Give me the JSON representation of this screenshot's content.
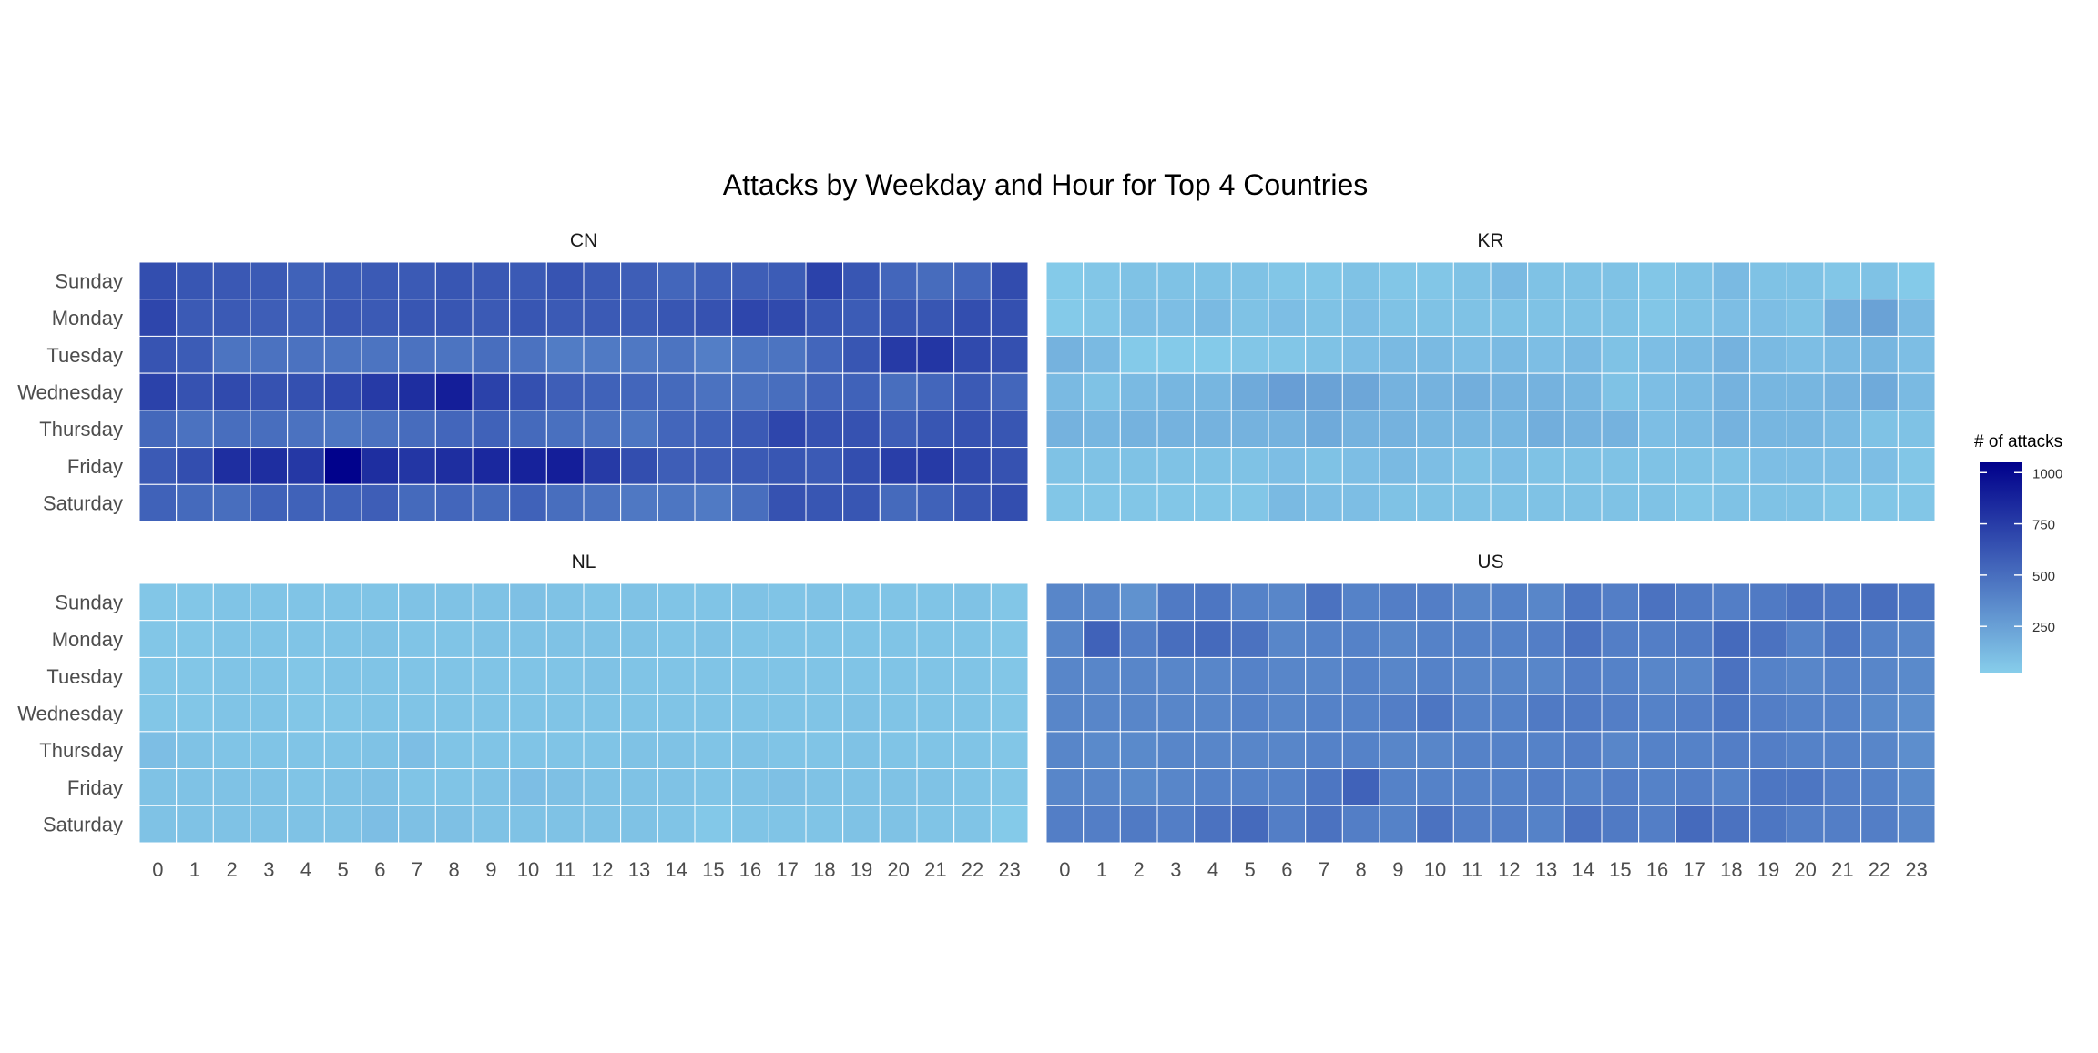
{
  "chart_data": {
    "type": "heatmap",
    "title": "Attacks by Weekday and Hour for Top 4 Countries",
    "xlabel": "",
    "ylabel": "",
    "hours": [
      "0",
      "1",
      "2",
      "3",
      "4",
      "5",
      "6",
      "7",
      "8",
      "9",
      "10",
      "11",
      "12",
      "13",
      "14",
      "15",
      "16",
      "17",
      "18",
      "19",
      "20",
      "21",
      "22",
      "23"
    ],
    "weekdays": [
      "Sunday",
      "Monday",
      "Tuesday",
      "Wednesday",
      "Thursday",
      "Friday",
      "Saturday"
    ],
    "legend": {
      "title": "# of attacks",
      "ticks": [
        250,
        500,
        750,
        1000
      ],
      "range": [
        20,
        1050
      ],
      "low_color": "#87CEEB",
      "high_color": "#00008B",
      "placement": "right"
    },
    "grid": false,
    "panels": [
      {
        "name": "CN",
        "values": [
          [
            660,
            620,
            610,
            600,
            560,
            590,
            600,
            600,
            620,
            610,
            600,
            630,
            600,
            580,
            540,
            570,
            580,
            590,
            720,
            620,
            540,
            510,
            540,
            670
          ],
          [
            700,
            600,
            600,
            580,
            560,
            610,
            600,
            620,
            620,
            600,
            620,
            600,
            600,
            590,
            620,
            640,
            700,
            680,
            620,
            590,
            620,
            620,
            660,
            650
          ],
          [
            630,
            590,
            470,
            480,
            480,
            470,
            470,
            480,
            470,
            500,
            480,
            430,
            440,
            450,
            470,
            420,
            460,
            470,
            540,
            620,
            760,
            780,
            680,
            650
          ],
          [
            720,
            640,
            680,
            640,
            650,
            690,
            760,
            820,
            900,
            720,
            650,
            580,
            560,
            540,
            520,
            480,
            480,
            500,
            550,
            560,
            500,
            540,
            600,
            540
          ],
          [
            530,
            480,
            500,
            500,
            480,
            460,
            480,
            510,
            540,
            560,
            520,
            490,
            480,
            460,
            540,
            560,
            600,
            700,
            640,
            640,
            580,
            620,
            640,
            620
          ],
          [
            600,
            660,
            820,
            820,
            770,
            1040,
            820,
            780,
            820,
            850,
            880,
            900,
            760,
            660,
            580,
            580,
            600,
            620,
            600,
            660,
            740,
            760,
            680,
            640
          ],
          [
            560,
            520,
            500,
            560,
            560,
            560,
            580,
            520,
            540,
            520,
            560,
            500,
            480,
            450,
            460,
            440,
            500,
            640,
            620,
            620,
            520,
            560,
            620,
            660
          ]
        ]
      },
      {
        "name": "KR",
        "values": [
          [
            40,
            60,
            80,
            80,
            80,
            80,
            60,
            60,
            80,
            60,
            60,
            80,
            120,
            80,
            80,
            80,
            60,
            80,
            120,
            80,
            80,
            60,
            80,
            40
          ],
          [
            40,
            60,
            100,
            100,
            120,
            80,
            100,
            80,
            100,
            80,
            80,
            80,
            80,
            80,
            80,
            80,
            60,
            80,
            100,
            100,
            80,
            180,
            240,
            120
          ],
          [
            160,
            120,
            40,
            40,
            40,
            60,
            60,
            80,
            100,
            120,
            120,
            100,
            120,
            100,
            120,
            80,
            100,
            120,
            160,
            120,
            100,
            120,
            140,
            100
          ],
          [
            120,
            80,
            120,
            140,
            140,
            200,
            260,
            240,
            220,
            160,
            160,
            180,
            160,
            160,
            140,
            80,
            100,
            120,
            160,
            140,
            140,
            160,
            200,
            120
          ],
          [
            160,
            140,
            160,
            160,
            160,
            160,
            160,
            200,
            160,
            160,
            140,
            140,
            140,
            180,
            160,
            160,
            100,
            120,
            160,
            140,
            140,
            120,
            80,
            80
          ],
          [
            80,
            80,
            80,
            80,
            80,
            80,
            100,
            80,
            100,
            120,
            100,
            80,
            100,
            80,
            80,
            80,
            80,
            80,
            80,
            100,
            100,
            100,
            100,
            60
          ],
          [
            60,
            60,
            60,
            60,
            60,
            60,
            120,
            100,
            100,
            80,
            80,
            80,
            80,
            80,
            80,
            80,
            80,
            60,
            80,
            80,
            80,
            60,
            60,
            60
          ]
        ]
      },
      {
        "name": "NL",
        "values": [
          [
            60,
            60,
            70,
            70,
            70,
            70,
            70,
            80,
            80,
            80,
            90,
            80,
            70,
            80,
            70,
            70,
            80,
            70,
            80,
            70,
            70,
            70,
            80,
            60
          ],
          [
            60,
            60,
            70,
            70,
            70,
            70,
            80,
            70,
            70,
            80,
            80,
            80,
            80,
            80,
            70,
            80,
            70,
            70,
            70,
            70,
            70,
            70,
            70,
            60
          ],
          [
            60,
            60,
            70,
            70,
            60,
            70,
            70,
            70,
            70,
            70,
            70,
            70,
            80,
            70,
            70,
            70,
            70,
            70,
            70,
            70,
            70,
            70,
            70,
            60
          ],
          [
            60,
            60,
            70,
            70,
            60,
            60,
            70,
            70,
            70,
            70,
            70,
            70,
            70,
            70,
            70,
            70,
            70,
            70,
            70,
            80,
            70,
            70,
            70,
            60
          ],
          [
            100,
            80,
            70,
            70,
            70,
            70,
            80,
            100,
            70,
            70,
            70,
            70,
            70,
            80,
            80,
            70,
            80,
            70,
            70,
            80,
            70,
            70,
            70,
            60
          ],
          [
            80,
            80,
            80,
            80,
            70,
            80,
            90,
            70,
            70,
            80,
            100,
            90,
            80,
            80,
            80,
            70,
            80,
            90,
            80,
            80,
            80,
            80,
            70,
            60
          ],
          [
            80,
            80,
            80,
            80,
            80,
            80,
            100,
            90,
            90,
            80,
            80,
            80,
            80,
            80,
            70,
            50,
            70,
            70,
            70,
            80,
            80,
            70,
            70,
            40
          ]
        ]
      },
      {
        "name": "US",
        "values": [
          [
            380,
            380,
            320,
            440,
            460,
            400,
            380,
            480,
            400,
            420,
            420,
            380,
            400,
            380,
            460,
            420,
            480,
            440,
            420,
            440,
            480,
            460,
            500,
            460
          ],
          [
            380,
            560,
            420,
            500,
            520,
            480,
            380,
            400,
            400,
            380,
            400,
            400,
            400,
            420,
            480,
            420,
            420,
            440,
            520,
            480,
            400,
            460,
            400,
            380
          ],
          [
            380,
            380,
            380,
            380,
            380,
            400,
            380,
            380,
            400,
            380,
            400,
            380,
            380,
            380,
            420,
            400,
            380,
            380,
            480,
            400,
            380,
            400,
            380,
            360
          ],
          [
            380,
            380,
            380,
            380,
            380,
            400,
            380,
            400,
            400,
            420,
            460,
            400,
            400,
            440,
            440,
            420,
            400,
            420,
            460,
            420,
            400,
            400,
            360,
            340
          ],
          [
            380,
            360,
            360,
            380,
            380,
            380,
            380,
            400,
            400,
            380,
            380,
            400,
            400,
            400,
            420,
            380,
            400,
            400,
            420,
            420,
            400,
            400,
            380,
            340
          ],
          [
            380,
            380,
            360,
            380,
            400,
            400,
            400,
            460,
            560,
            400,
            400,
            400,
            400,
            420,
            400,
            420,
            400,
            420,
            400,
            460,
            460,
            420,
            400,
            360
          ],
          [
            420,
            420,
            440,
            420,
            480,
            520,
            420,
            480,
            420,
            400,
            480,
            420,
            420,
            400,
            480,
            440,
            420,
            520,
            480,
            460,
            420,
            420,
            420,
            380
          ]
        ]
      }
    ]
  }
}
